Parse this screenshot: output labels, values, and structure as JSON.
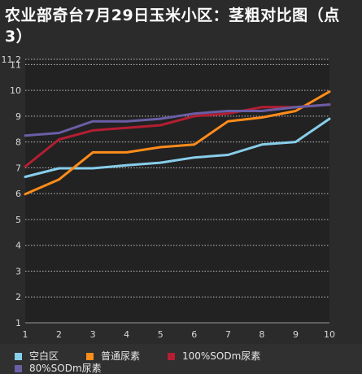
{
  "chart_data": {
    "type": "line",
    "title": "农业部奇台7月29日玉米小区：茎粗对比图（点3）",
    "x": [
      1,
      2,
      3,
      4,
      5,
      6,
      7,
      8,
      9,
      10
    ],
    "x_tick_labels": [
      "1",
      "2",
      "3",
      "4",
      "5",
      "6",
      "7",
      "8",
      "9",
      "10"
    ],
    "y_tick_labels": [
      "1",
      "2",
      "3",
      "4",
      "5",
      "6",
      "7",
      "8",
      "9",
      "10",
      "11",
      "11.2"
    ],
    "ylim": [
      1,
      11.2
    ],
    "grid": true,
    "legend_position": "bottom",
    "series": [
      {
        "name": "空白区",
        "color": "#87ceeb",
        "values": [
          6.65,
          6.98,
          6.98,
          7.1,
          7.2,
          7.4,
          7.5,
          7.9,
          8.0,
          8.9
        ]
      },
      {
        "name": "普通尿素",
        "color": "#ff8c1a",
        "values": [
          5.98,
          6.55,
          7.6,
          7.6,
          7.8,
          7.9,
          8.8,
          8.95,
          9.2,
          9.95
        ]
      },
      {
        "name": "100%SODm尿素",
        "color": "#b41e32",
        "values": [
          7.05,
          8.1,
          8.45,
          8.55,
          8.65,
          9.0,
          9.1,
          9.35,
          9.35,
          9.45
        ]
      },
      {
        "name": "80%SODm尿素",
        "color": "#6a5ea6",
        "values": [
          8.25,
          8.35,
          8.8,
          8.8,
          8.9,
          9.1,
          9.2,
          9.2,
          9.35,
          9.45
        ]
      }
    ]
  }
}
